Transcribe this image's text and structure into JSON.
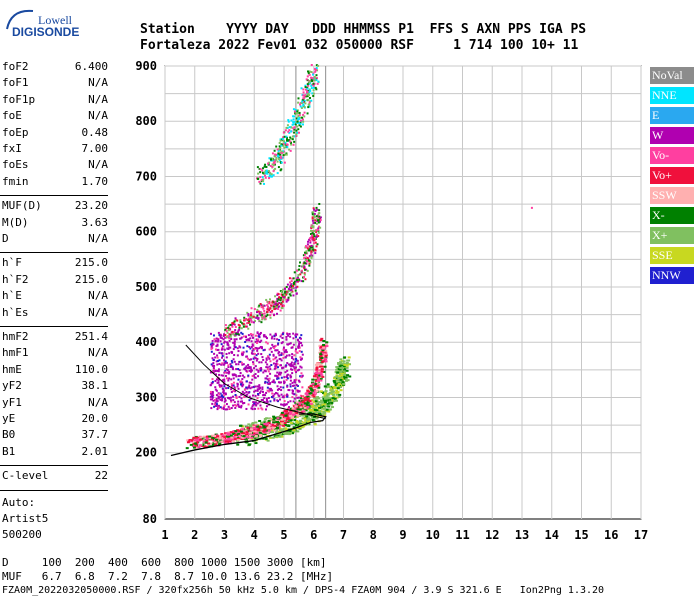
{
  "logo": {
    "brand": "Lowell",
    "product": "DIGISONDE"
  },
  "header": {
    "row1": "Station    YYYY DAY   DDD HHMMSS P1  FFS S AXN PPS IGA PS",
    "row2": "Fortaleza 2022 Fev01 032 050000 RSF     1 714 100 10+ 11"
  },
  "params": [
    [
      [
        "foF2",
        "6.400"
      ],
      [
        "foF1",
        "N/A"
      ],
      [
        "foF1p",
        "N/A"
      ],
      [
        "foE",
        "N/A"
      ],
      [
        "foEp",
        "0.48"
      ],
      [
        "fxI",
        "7.00"
      ],
      [
        "foEs",
        "N/A"
      ],
      [
        "fmin",
        "1.70"
      ]
    ],
    [
      [
        "MUF(D)",
        "23.20"
      ],
      [
        "M(D)",
        "3.63"
      ],
      [
        "D",
        "N/A"
      ]
    ],
    [
      [
        "h`F",
        "215.0"
      ],
      [
        "h`F2",
        "215.0"
      ],
      [
        "h`E",
        "N/A"
      ],
      [
        "h`Es",
        "N/A"
      ]
    ],
    [
      [
        "hmF2",
        "251.4"
      ],
      [
        "hmF1",
        "N/A"
      ],
      [
        "hmE",
        "110.0"
      ],
      [
        "yF2",
        "38.1"
      ],
      [
        "yF1",
        "N/A"
      ],
      [
        "yE",
        "20.0"
      ],
      [
        "B0",
        "37.7"
      ],
      [
        "B1",
        "2.01"
      ]
    ],
    [
      [
        "C-level",
        "22"
      ]
    ]
  ],
  "auto": [
    "Auto:",
    "Artist5",
    "500200"
  ],
  "legend": [
    {
      "label": "NoVal",
      "color": "#8c8c8c"
    },
    {
      "label": "NNE",
      "color": "#00e5ff"
    },
    {
      "label": "E",
      "color": "#2aa8f0"
    },
    {
      "label": "W",
      "color": "#b000b0"
    },
    {
      "label": "Vo-",
      "color": "#ff3fa0"
    },
    {
      "label": "Vo+",
      "color": "#f0103c"
    },
    {
      "label": "SSW",
      "color": "#ffb0b0"
    },
    {
      "label": "X-",
      "color": "#008000"
    },
    {
      "label": "X+",
      "color": "#80c060"
    },
    {
      "label": "SSE",
      "color": "#c8d820"
    },
    {
      "label": "NNW",
      "color": "#2020d0"
    }
  ],
  "footer": {
    "d_row": "D     100  200  400  600  800 1000 1500 3000 [km]",
    "muf_row": "MUF   6.7  6.8  7.2  7.8  8.7 10.0 13.6 23.2 [MHz]",
    "info_row": "FZA0M_2022032050000.RSF / 320fx256h 50 kHz 5.0 km / DPS-4 FZA0M 904 / 3.9 S 321.6 E   Ion2Png 1.3.20"
  },
  "chart_data": {
    "type": "scatter",
    "title": "",
    "xlabel": "",
    "ylabel": "",
    "xlim": [
      1,
      17
    ],
    "ylim": [
      80,
      900
    ],
    "x_ticks": [
      1,
      2,
      3,
      4,
      5,
      6,
      7,
      8,
      9,
      10,
      11,
      12,
      13,
      14,
      15,
      16,
      17
    ],
    "y_ticks": [
      80,
      200,
      300,
      400,
      500,
      600,
      700,
      800,
      900
    ],
    "y_grid": [
      200,
      250,
      300,
      350,
      400,
      450,
      500,
      550,
      600,
      650,
      700,
      750,
      800,
      850,
      900
    ],
    "grid": true,
    "reference_lines": [
      {
        "x": 5.4
      },
      {
        "x": 6.4
      }
    ],
    "profile_curve": [
      [
        1.2,
        195
      ],
      [
        2.0,
        205
      ],
      [
        3.0,
        215
      ],
      [
        4.0,
        222
      ],
      [
        4.8,
        235
      ],
      [
        5.4,
        245
      ],
      [
        5.9,
        255
      ],
      [
        6.3,
        258
      ],
      [
        6.4,
        265
      ],
      [
        6.0,
        270
      ],
      [
        5.5,
        270
      ]
    ],
    "muf_curve": [
      [
        1.7,
        395
      ],
      [
        2.3,
        360
      ],
      [
        3.0,
        325
      ],
      [
        3.8,
        300
      ],
      [
        4.8,
        282
      ],
      [
        5.6,
        272
      ],
      [
        6.1,
        265
      ],
      [
        6.4,
        262
      ]
    ],
    "o_trace": [
      [
        1.8,
        220
      ],
      [
        2.5,
        222
      ],
      [
        3.0,
        228
      ],
      [
        3.5,
        235
      ],
      [
        4.0,
        240
      ],
      [
        4.5,
        250
      ],
      [
        5.0,
        265
      ],
      [
        5.4,
        280
      ],
      [
        5.7,
        295
      ],
      [
        6.0,
        320
      ],
      [
        6.2,
        360
      ],
      [
        6.3,
        400
      ]
    ],
    "x_trace": [
      [
        3.5,
        232
      ],
      [
        4.5,
        245
      ],
      [
        5.3,
        258
      ],
      [
        5.9,
        275
      ],
      [
        6.4,
        295
      ],
      [
        6.8,
        330
      ],
      [
        7.0,
        360
      ]
    ],
    "second_echo": [
      [
        3.0,
        420
      ],
      [
        3.6,
        440
      ],
      [
        4.2,
        455
      ],
      [
        4.7,
        470
      ],
      [
        5.1,
        490
      ],
      [
        5.5,
        520
      ],
      [
        5.8,
        560
      ],
      [
        6.0,
        600
      ],
      [
        6.1,
        640
      ]
    ],
    "third_echo": [
      [
        4.2,
        700
      ],
      [
        4.7,
        730
      ],
      [
        5.1,
        770
      ],
      [
        5.5,
        810
      ],
      [
        5.8,
        860
      ],
      [
        6.0,
        890
      ]
    ],
    "spread_region": [
      [
        2.5,
        280
      ],
      [
        5.6,
        420
      ]
    ],
    "isolated_point": [
      13.3,
      645
    ]
  }
}
